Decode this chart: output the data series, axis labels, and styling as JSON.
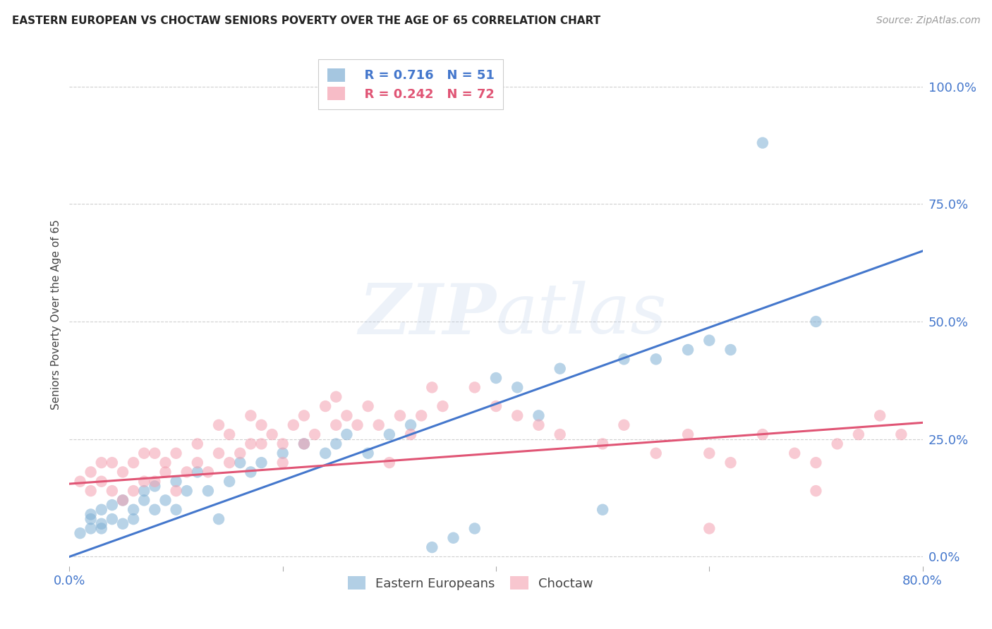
{
  "title": "EASTERN EUROPEAN VS CHOCTAW SENIORS POVERTY OVER THE AGE OF 65 CORRELATION CHART",
  "source": "Source: ZipAtlas.com",
  "ylabel": "Seniors Poverty Over the Age of 65",
  "xlim": [
    0.0,
    0.8
  ],
  "ylim": [
    -0.02,
    1.05
  ],
  "yticks": [
    0.0,
    0.25,
    0.5,
    0.75,
    1.0
  ],
  "ytick_labels": [
    "0.0%",
    "25.0%",
    "50.0%",
    "75.0%",
    "100.0%"
  ],
  "xticks": [
    0.0,
    0.2,
    0.4,
    0.6,
    0.8
  ],
  "xtick_labels": [
    "0.0%",
    "",
    "",
    "",
    "80.0%"
  ],
  "background_color": "#ffffff",
  "grid_color": "#d0d0d0",
  "watermark_zip": "ZIP",
  "watermark_atlas": "atlas",
  "blue_color": "#7fafd4",
  "pink_color": "#f4a0b0",
  "blue_line_color": "#4477cc",
  "pink_line_color": "#e05575",
  "tick_label_color": "#4477cc",
  "R_blue": 0.716,
  "N_blue": 51,
  "R_pink": 0.242,
  "N_pink": 72,
  "blue_line_x0": 0.0,
  "blue_line_y0": 0.0,
  "blue_line_x1": 0.8,
  "blue_line_y1": 0.65,
  "pink_line_x0": 0.0,
  "pink_line_y0": 0.155,
  "pink_line_x1": 0.8,
  "pink_line_y1": 0.285,
  "blue_scatter_x": [
    0.01,
    0.02,
    0.02,
    0.02,
    0.03,
    0.03,
    0.03,
    0.04,
    0.04,
    0.05,
    0.05,
    0.06,
    0.06,
    0.07,
    0.07,
    0.08,
    0.08,
    0.09,
    0.1,
    0.1,
    0.11,
    0.12,
    0.13,
    0.14,
    0.15,
    0.16,
    0.17,
    0.18,
    0.2,
    0.22,
    0.24,
    0.25,
    0.26,
    0.28,
    0.3,
    0.32,
    0.34,
    0.36,
    0.38,
    0.4,
    0.42,
    0.44,
    0.46,
    0.5,
    0.52,
    0.55,
    0.58,
    0.6,
    0.62,
    0.65,
    0.7
  ],
  "blue_scatter_y": [
    0.05,
    0.06,
    0.08,
    0.09,
    0.06,
    0.07,
    0.1,
    0.08,
    0.11,
    0.07,
    0.12,
    0.08,
    0.1,
    0.12,
    0.14,
    0.1,
    0.15,
    0.12,
    0.1,
    0.16,
    0.14,
    0.18,
    0.14,
    0.08,
    0.16,
    0.2,
    0.18,
    0.2,
    0.22,
    0.24,
    0.22,
    0.24,
    0.26,
    0.22,
    0.26,
    0.28,
    0.02,
    0.04,
    0.06,
    0.38,
    0.36,
    0.3,
    0.4,
    0.1,
    0.42,
    0.42,
    0.44,
    0.46,
    0.44,
    0.88,
    0.5
  ],
  "pink_scatter_x": [
    0.01,
    0.02,
    0.02,
    0.03,
    0.03,
    0.04,
    0.04,
    0.05,
    0.05,
    0.06,
    0.06,
    0.07,
    0.07,
    0.08,
    0.08,
    0.09,
    0.09,
    0.1,
    0.1,
    0.11,
    0.12,
    0.12,
    0.13,
    0.14,
    0.14,
    0.15,
    0.15,
    0.16,
    0.17,
    0.17,
    0.18,
    0.18,
    0.19,
    0.2,
    0.2,
    0.21,
    0.22,
    0.22,
    0.23,
    0.24,
    0.25,
    0.25,
    0.26,
    0.27,
    0.28,
    0.29,
    0.3,
    0.31,
    0.32,
    0.33,
    0.34,
    0.35,
    0.38,
    0.4,
    0.42,
    0.44,
    0.46,
    0.5,
    0.52,
    0.55,
    0.58,
    0.6,
    0.62,
    0.65,
    0.68,
    0.7,
    0.72,
    0.74,
    0.76,
    0.78,
    0.6,
    0.7
  ],
  "pink_scatter_y": [
    0.16,
    0.14,
    0.18,
    0.16,
    0.2,
    0.14,
    0.2,
    0.12,
    0.18,
    0.14,
    0.2,
    0.16,
    0.22,
    0.16,
    0.22,
    0.18,
    0.2,
    0.14,
    0.22,
    0.18,
    0.2,
    0.24,
    0.18,
    0.22,
    0.28,
    0.2,
    0.26,
    0.22,
    0.24,
    0.3,
    0.24,
    0.28,
    0.26,
    0.2,
    0.24,
    0.28,
    0.24,
    0.3,
    0.26,
    0.32,
    0.28,
    0.34,
    0.3,
    0.28,
    0.32,
    0.28,
    0.2,
    0.3,
    0.26,
    0.3,
    0.36,
    0.32,
    0.36,
    0.32,
    0.3,
    0.28,
    0.26,
    0.24,
    0.28,
    0.22,
    0.26,
    0.22,
    0.2,
    0.26,
    0.22,
    0.2,
    0.24,
    0.26,
    0.3,
    0.26,
    0.06,
    0.14
  ]
}
